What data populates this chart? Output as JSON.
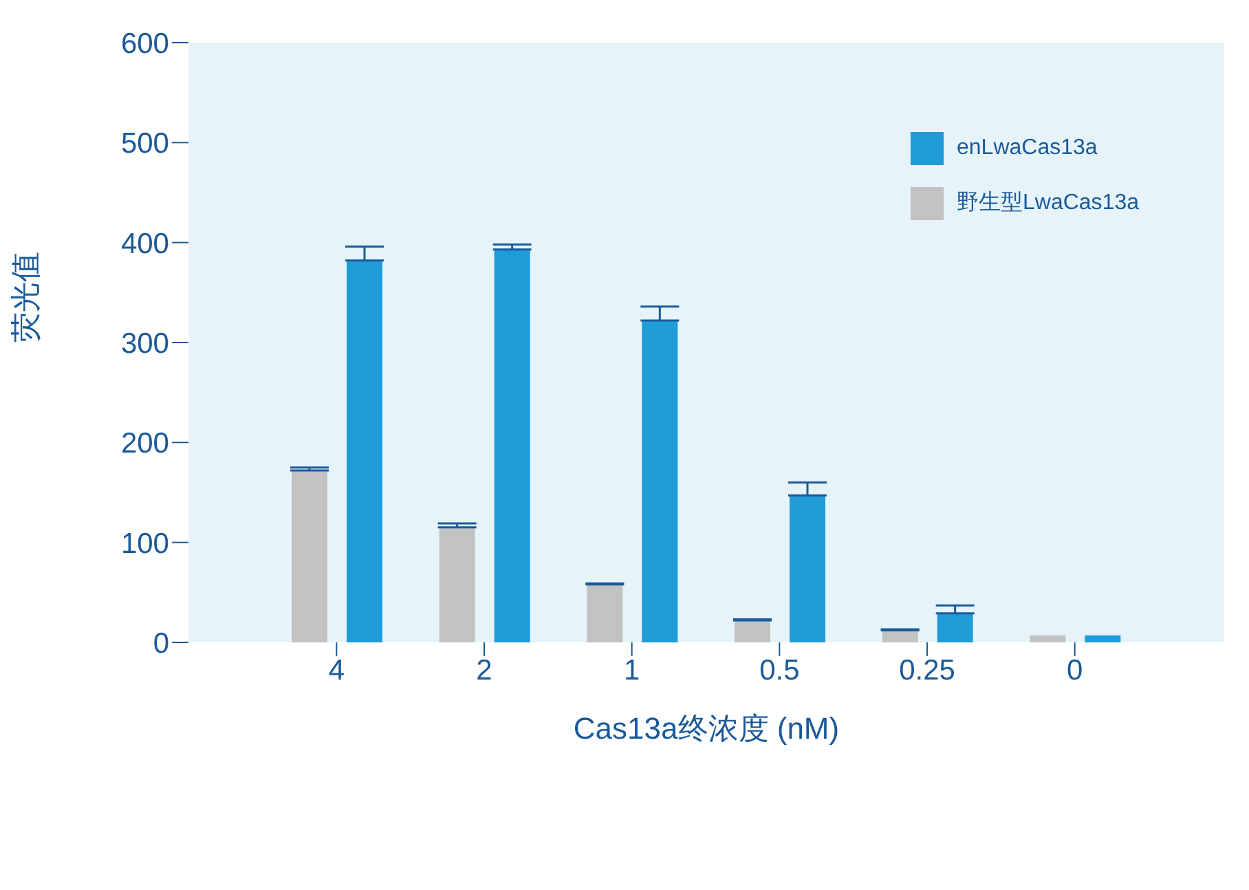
{
  "chart_data": {
    "type": "bar",
    "xlabel": "Cas13a终浓度 (nM)",
    "ylabel": "荧光值",
    "categories": [
      "4",
      "2",
      "1",
      "0.5",
      "0.25",
      "0"
    ],
    "series": [
      {
        "name": "野生型LwaCas13a",
        "color": "#c2c2c2",
        "values": [
          172,
          115,
          58,
          22,
          12,
          7
        ],
        "errors": [
          [
            172,
            175
          ],
          [
            115,
            119
          ],
          [
            58,
            59
          ],
          [
            22,
            23
          ],
          [
            12,
            13
          ],
          null
        ]
      },
      {
        "name": "enLwaCas13a",
        "color": "#1f9bd7",
        "values": [
          382,
          393,
          322,
          147,
          29,
          7
        ],
        "errors": [
          [
            382,
            396
          ],
          [
            393,
            398
          ],
          [
            322,
            336
          ],
          [
            147,
            160
          ],
          [
            29,
            37
          ],
          null
        ]
      }
    ],
    "ylim": [
      0,
      600
    ],
    "yticks": [
      0,
      100,
      200,
      300,
      400,
      500,
      600
    ],
    "grid": false,
    "legend": "top right"
  }
}
